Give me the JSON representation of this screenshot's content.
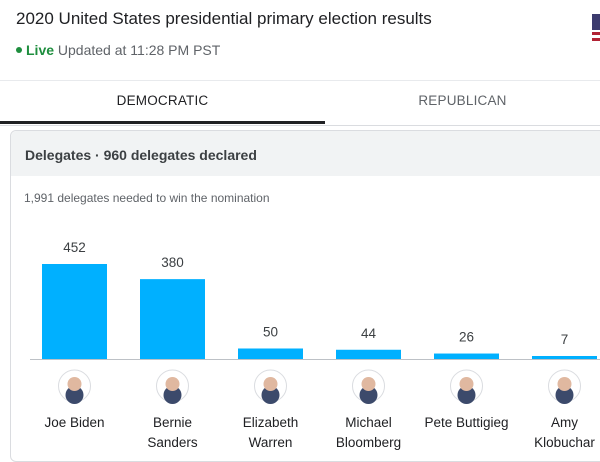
{
  "header": {
    "title": "2020 United States presidential primary election results",
    "live": "Live",
    "updated": "Updated at 11:28 PM PST"
  },
  "tabs": [
    {
      "label": "DEMOCRATIC",
      "selected": true
    },
    {
      "label": "REPUBLICAN",
      "selected": false
    }
  ],
  "panel": {
    "title": "Delegates · 960 delegates declared",
    "needed": "1,991 delegates needed to win the nomination"
  },
  "colors": {
    "bar": "#00b0ff",
    "live": "#1e8e3e"
  },
  "chart_data": {
    "type": "bar",
    "categories": [
      [
        "Joe Biden"
      ],
      [
        "Bernie",
        "Sanders"
      ],
      [
        "Elizabeth",
        "Warren"
      ],
      [
        "Michael",
        "Bloomberg"
      ],
      [
        "Pete Buttigieg"
      ],
      [
        "Amy",
        "Klobuchar"
      ]
    ],
    "values": [
      452,
      380,
      50,
      44,
      26,
      7
    ],
    "data_labels": [
      "452",
      "380",
      "50",
      "44",
      "26",
      "7"
    ],
    "avatars": [
      "avatar-joe-biden",
      "avatar-bernie-sanders",
      "avatar-elizabeth-warren",
      "avatar-michael-bloomberg",
      "avatar-pete-buttigieg",
      "avatar-amy-klobuchar"
    ],
    "ylim": [
      0,
      452
    ]
  }
}
